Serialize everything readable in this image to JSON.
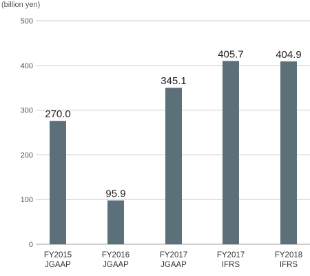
{
  "chart_data": {
    "type": "bar",
    "unit_label": "(billion yen)",
    "categories": [
      [
        "FY2015",
        "JGAAP"
      ],
      [
        "FY2016",
        "JGAAP"
      ],
      [
        "FY2017",
        "JGAAP"
      ],
      [
        "FY2017",
        "IFRS"
      ],
      [
        "FY2018",
        "IFRS"
      ]
    ],
    "values": [
      270.0,
      95.9,
      345.1,
      405.7,
      404.9
    ],
    "value_labels": [
      "270.0",
      "95.9",
      "345.1",
      "405.7",
      "404.9"
    ],
    "real_values": [
      276,
      98,
      350,
      410,
      409
    ],
    "yticks": [
      0,
      100,
      200,
      300,
      400,
      500
    ],
    "ylim": [
      0,
      500
    ],
    "grid": true,
    "bar_color": "#5b7078",
    "grid_color": "#cccccc"
  }
}
